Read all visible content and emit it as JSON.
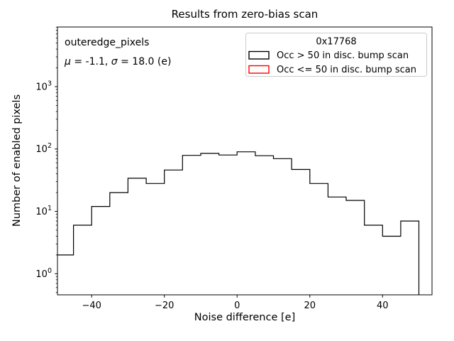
{
  "figure": {
    "title": "Results from zero-bias scan",
    "xlabel": "Noise difference [e]",
    "ylabel": "Number of enabled pixels",
    "annotation": {
      "dataset": "outeredge_pixels",
      "stats": "μ = -1.1, σ = 18.0 (e)"
    },
    "legend": {
      "title": "0x17768",
      "entries": [
        {
          "label": "Occ > 50 in disc. bump scan",
          "color": "#000000"
        },
        {
          "label": "Occ <= 50 in disc. bump scan",
          "color": "#ff0000"
        }
      ]
    }
  },
  "chart_data": {
    "type": "bar",
    "subtype": "step-histogram",
    "title": "Results from zero-bias scan",
    "xlabel": "Noise difference [e]",
    "ylabel": "Number of enabled pixels",
    "y_scale": "log",
    "grid": false,
    "legend_position": "upper right",
    "legend_title": "0x17768",
    "annotations": [
      "outeredge_pixels",
      "μ = -1.1, σ = 18.0 (e)"
    ],
    "bin_edges": [
      -50,
      -45,
      -40,
      -35,
      -30,
      -25,
      -20,
      -15,
      -10,
      -5,
      0,
      5,
      10,
      15,
      20,
      25,
      30,
      35,
      40,
      45,
      50
    ],
    "series": [
      {
        "name": "Occ > 50 in disc. bump scan",
        "color": "#000000",
        "counts": [
          2,
          6,
          12,
          20,
          34,
          28,
          46,
          79,
          85,
          80,
          90,
          78,
          70,
          47,
          28,
          17,
          15,
          6,
          4,
          7
        ]
      },
      {
        "name": "Occ <= 50 in disc. bump scan",
        "color": "#ff0000",
        "counts": [
          0,
          0,
          0,
          0,
          0,
          0,
          0,
          0,
          0,
          0,
          0,
          0,
          0,
          0,
          0,
          0,
          0,
          0,
          0,
          0
        ]
      }
    ],
    "x_ticks": [
      -40,
      -20,
      0,
      20,
      40
    ],
    "y_ticks": [
      1,
      10,
      100,
      1000
    ],
    "xlim": [
      -49.4,
      53.6
    ],
    "ylim": [
      0.459,
      9040
    ]
  }
}
